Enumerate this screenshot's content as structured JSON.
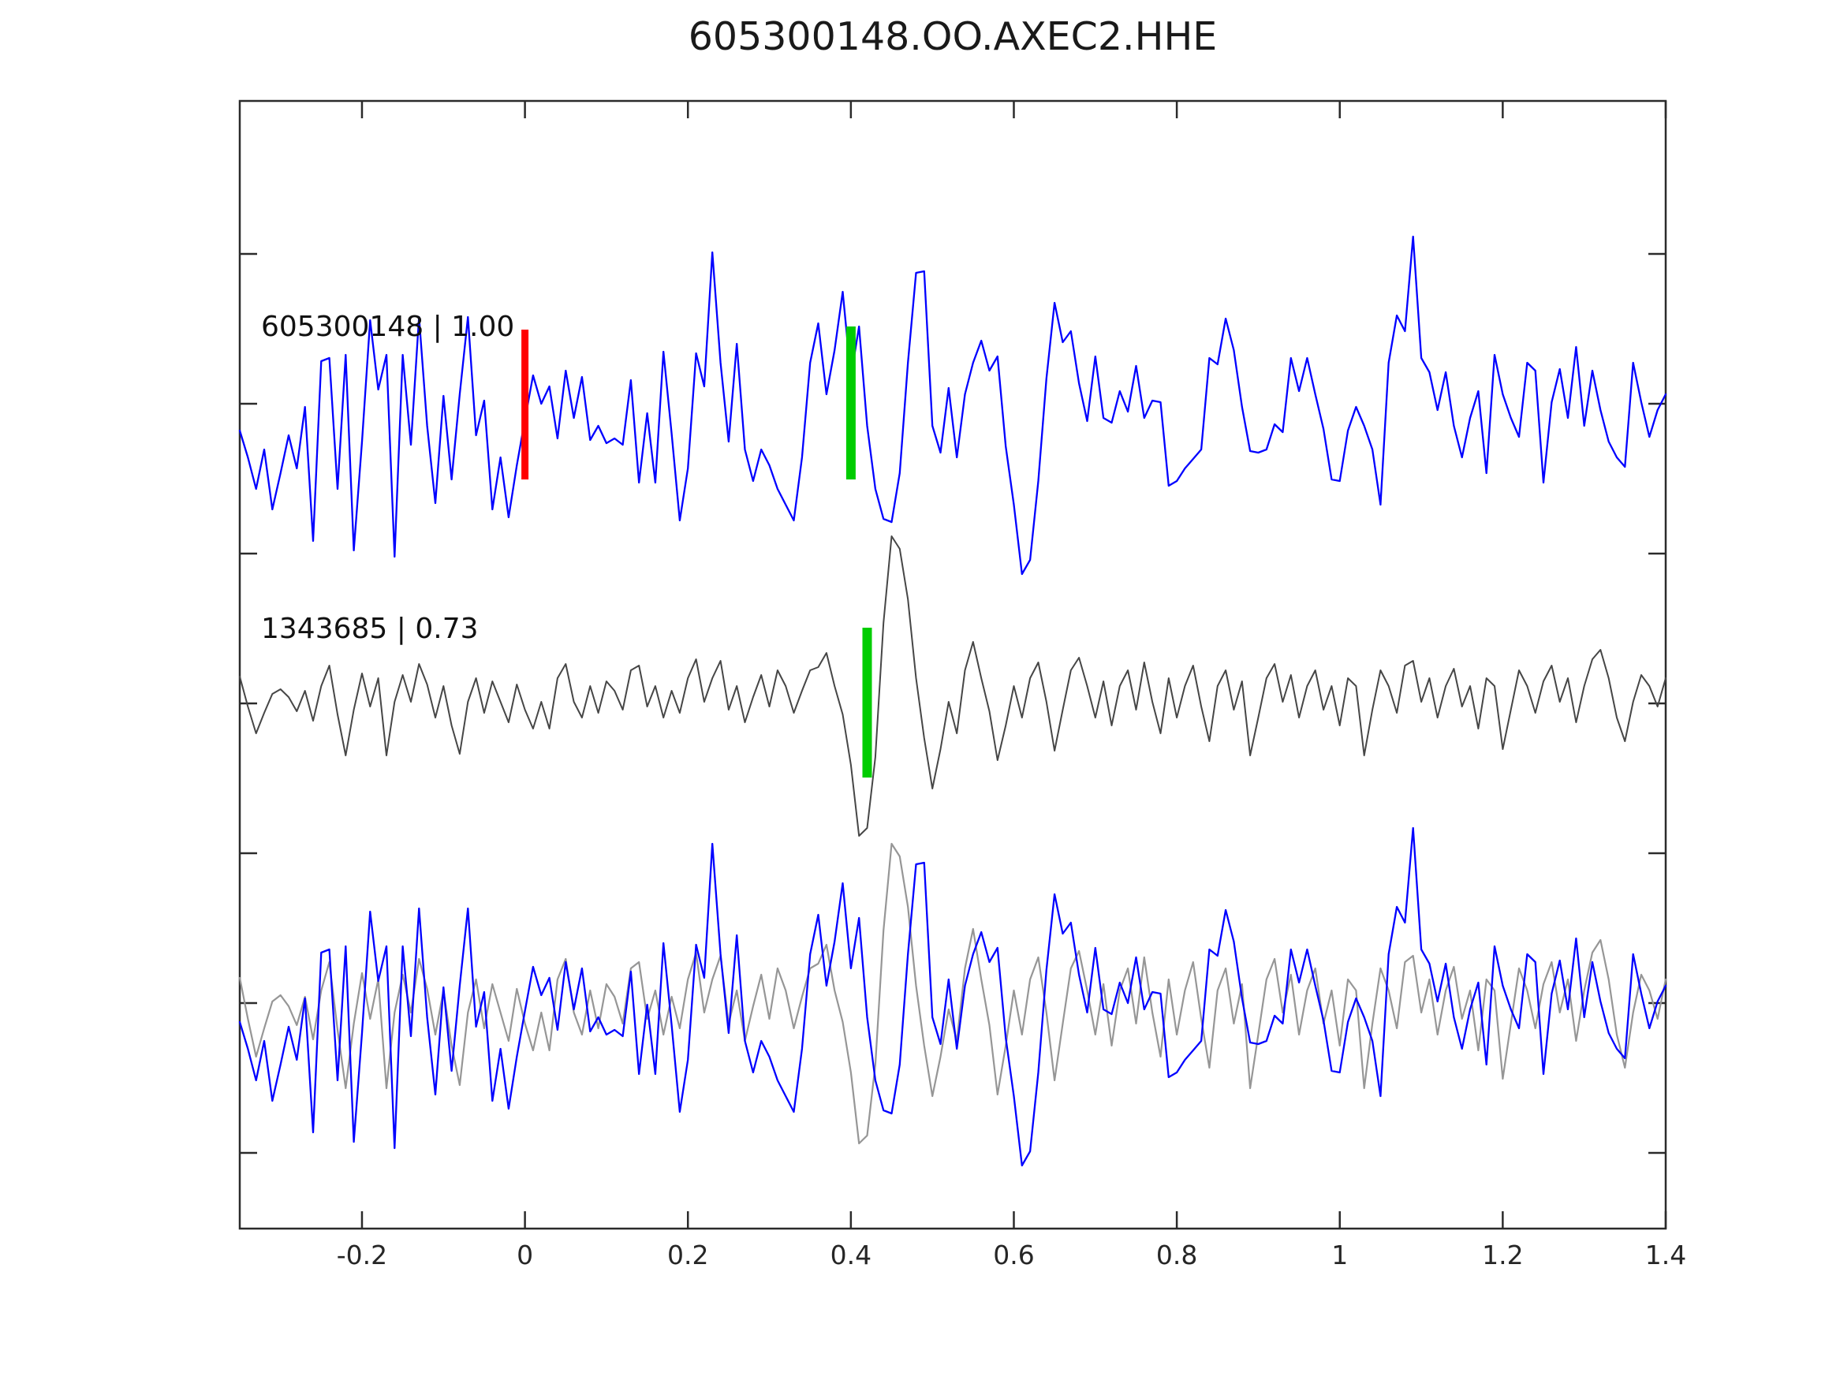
{
  "chart_data": {
    "type": "line",
    "title": "605300148.OO.AXEC2.HHE",
    "xlabel": "",
    "ylabel": "",
    "xlim": [
      -0.35,
      1.4
    ],
    "x_start": -0.35,
    "x_step": 0.01,
    "grid": false,
    "legend": "none",
    "x_ticks": [
      -0.2,
      0,
      0.2,
      0.4,
      0.6,
      0.8,
      1,
      1.2,
      1.4
    ],
    "x_tick_labels": [
      "-0.2",
      "0",
      "0.2",
      "0.4",
      "0.6",
      "0.8",
      "1",
      "1.2",
      "1.4"
    ],
    "annotations": [
      {
        "row": 0,
        "label": "605300148 | 1.00"
      },
      {
        "row": 1,
        "label": "1343685 | 0.73"
      }
    ],
    "markers": [
      {
        "row": 0,
        "x": 0.0,
        "color": "#ff0000",
        "width": 9,
        "span_up": 0.51,
        "span_down": 0.44,
        "name": "origin-time-marker"
      },
      {
        "row": 0,
        "x": 0.4,
        "color": "#00cc00",
        "width": 12,
        "span_up": 0.53,
        "span_down": 0.44,
        "name": "detection-pick-marker"
      },
      {
        "row": 1,
        "x": 0.42,
        "color": "#00cc00",
        "width": 12,
        "span_up": 0.42,
        "span_down": 0.53,
        "name": "template-pick-marker"
      }
    ],
    "rows": [
      {
        "name": "detection-row",
        "plots": [
          {
            "series": "detection",
            "color": "#0000ff",
            "width": 2.3
          }
        ]
      },
      {
        "name": "template-row",
        "plots": [
          {
            "series": "template",
            "color": "#464646",
            "width": 2.0
          }
        ]
      },
      {
        "name": "overlay-row",
        "plots": [
          {
            "series": "template_overlay",
            "color": "#969696",
            "width": 2.2
          },
          {
            "series": "detection",
            "color": "#0000ff",
            "width": 2.3
          }
        ]
      }
    ],
    "series": [
      {
        "id": "detection",
        "values": [
          -0.13,
          -0.3,
          -0.5,
          -0.25,
          -0.63,
          -0.4,
          -0.16,
          -0.37,
          0.02,
          -0.83,
          0.31,
          0.33,
          -0.5,
          0.35,
          -0.89,
          -0.2,
          0.57,
          0.13,
          0.35,
          -0.93,
          0.35,
          -0.22,
          0.59,
          -0.1,
          -0.59,
          0.09,
          -0.44,
          0.1,
          0.59,
          -0.16,
          0.06,
          -0.63,
          -0.3,
          -0.68,
          -0.35,
          -0.06,
          0.22,
          0.04,
          0.15,
          -0.18,
          0.25,
          -0.05,
          0.21,
          -0.19,
          -0.1,
          -0.21,
          -0.18,
          -0.22,
          0.19,
          -0.46,
          -0.02,
          -0.46,
          0.37,
          -0.15,
          -0.7,
          -0.37,
          0.36,
          0.15,
          1.0,
          0.3,
          -0.2,
          0.42,
          -0.25,
          -0.45,
          -0.25,
          -0.35,
          -0.5,
          -0.6,
          -0.7,
          -0.3,
          0.3,
          0.55,
          0.1,
          0.38,
          0.75,
          0.21,
          0.53,
          -0.1,
          -0.5,
          -0.69,
          -0.71,
          -0.4,
          0.3,
          0.87,
          0.88,
          -0.1,
          -0.27,
          0.14,
          -0.3,
          0.1,
          0.3,
          0.44,
          0.25,
          0.34,
          -0.23,
          -0.6,
          -1.04,
          -0.95,
          -0.45,
          0.2,
          0.68,
          0.43,
          0.5,
          0.17,
          -0.07,
          0.34,
          -0.05,
          -0.08,
          0.12,
          -0.01,
          0.28,
          -0.05,
          0.06,
          0.05,
          -0.48,
          -0.45,
          -0.37,
          -0.31,
          -0.25,
          0.33,
          0.29,
          0.58,
          0.38,
          0.02,
          -0.26,
          -0.27,
          -0.25,
          -0.09,
          -0.14,
          0.33,
          0.12,
          0.33,
          0.1,
          -0.12,
          -0.44,
          -0.45,
          -0.13,
          0.02,
          -0.1,
          -0.25,
          -0.6,
          0.3,
          0.6,
          0.5,
          1.1,
          0.33,
          0.24,
          0.0,
          0.24,
          -0.1,
          -0.3,
          -0.05,
          0.12,
          -0.4,
          0.35,
          0.1,
          -0.05,
          -0.17,
          0.3,
          0.25,
          -0.46,
          0.05,
          0.26,
          -0.05,
          0.4,
          -0.1,
          0.25,
          0.0,
          -0.2,
          -0.3,
          -0.36,
          0.3,
          0.05,
          -0.17,
          0.0,
          0.1
        ]
      },
      {
        "id": "template",
        "values": [
          0.11,
          -0.08,
          -0.25,
          -0.12,
          0.0,
          0.03,
          -0.02,
          -0.11,
          0.02,
          -0.17,
          0.05,
          0.18,
          -0.13,
          -0.39,
          -0.1,
          0.13,
          -0.08,
          0.1,
          -0.39,
          -0.05,
          0.12,
          -0.05,
          0.19,
          0.06,
          -0.15,
          0.05,
          -0.2,
          -0.38,
          -0.05,
          0.1,
          -0.12,
          0.08,
          -0.05,
          -0.18,
          0.06,
          -0.1,
          -0.22,
          -0.05,
          -0.22,
          0.1,
          0.19,
          -0.05,
          -0.15,
          0.05,
          -0.12,
          0.08,
          0.02,
          -0.1,
          0.15,
          0.18,
          -0.08,
          0.05,
          -0.15,
          0.02,
          -0.12,
          0.1,
          0.22,
          -0.05,
          0.1,
          0.21,
          -0.1,
          0.05,
          -0.18,
          -0.02,
          0.12,
          -0.08,
          0.15,
          0.05,
          -0.12,
          0.02,
          0.15,
          0.17,
          0.26,
          0.05,
          -0.13,
          -0.45,
          -0.9,
          -0.85,
          -0.4,
          0.45,
          1.0,
          0.92,
          0.6,
          0.1,
          -0.28,
          -0.6,
          -0.35,
          -0.05,
          -0.25,
          0.15,
          0.33,
          0.1,
          -0.11,
          -0.42,
          -0.2,
          0.05,
          -0.15,
          0.1,
          0.2,
          -0.05,
          -0.36,
          -0.1,
          0.15,
          0.23,
          0.05,
          -0.15,
          0.08,
          -0.2,
          0.05,
          0.15,
          -0.1,
          0.2,
          -0.05,
          -0.25,
          0.1,
          -0.15,
          0.05,
          0.18,
          -0.08,
          -0.3,
          0.05,
          0.15,
          -0.1,
          0.08,
          -0.39,
          -0.15,
          0.1,
          0.19,
          -0.05,
          0.12,
          -0.15,
          0.05,
          0.15,
          -0.1,
          0.05,
          -0.2,
          0.1,
          0.05,
          -0.39,
          -0.1,
          0.15,
          0.05,
          -0.12,
          0.18,
          0.21,
          -0.05,
          0.1,
          -0.15,
          0.05,
          0.16,
          -0.08,
          0.05,
          -0.22,
          0.1,
          0.05,
          -0.35,
          -0.1,
          0.15,
          0.05,
          -0.12,
          0.08,
          0.18,
          -0.05,
          0.1,
          -0.18,
          0.05,
          0.22,
          0.28,
          0.1,
          -0.15,
          -0.3,
          -0.05,
          0.12,
          0.05,
          -0.08,
          0.1
        ]
      },
      {
        "id": "template_overlay",
        "values": [
          0.15,
          -0.11,
          -0.35,
          -0.17,
          0.0,
          0.04,
          -0.03,
          -0.15,
          0.03,
          -0.24,
          0.07,
          0.25,
          -0.18,
          -0.55,
          -0.14,
          0.18,
          -0.11,
          0.14,
          -0.55,
          -0.07,
          0.17,
          -0.07,
          0.27,
          0.08,
          -0.21,
          0.07,
          -0.28,
          -0.53,
          -0.07,
          0.14,
          -0.17,
          0.11,
          -0.07,
          -0.25,
          0.08,
          -0.14,
          -0.31,
          -0.07,
          -0.31,
          0.14,
          0.27,
          -0.07,
          -0.21,
          0.07,
          -0.17,
          0.11,
          0.03,
          -0.14,
          0.21,
          0.25,
          -0.11,
          0.07,
          -0.21,
          0.03,
          -0.17,
          0.14,
          0.31,
          -0.07,
          0.14,
          0.29,
          -0.14,
          0.07,
          -0.25,
          -0.03,
          0.17,
          -0.11,
          0.21,
          0.07,
          -0.17,
          0.03,
          0.21,
          0.24,
          0.36,
          0.07,
          -0.13,
          -0.45,
          -0.9,
          -0.85,
          -0.4,
          0.45,
          1.0,
          0.92,
          0.6,
          0.1,
          -0.28,
          -0.6,
          -0.35,
          -0.05,
          -0.25,
          0.21,
          0.46,
          0.14,
          -0.15,
          -0.59,
          -0.28,
          0.07,
          -0.21,
          0.14,
          0.28,
          -0.07,
          -0.5,
          -0.14,
          0.21,
          0.32,
          0.07,
          -0.21,
          0.11,
          -0.28,
          0.07,
          0.21,
          -0.14,
          0.28,
          -0.07,
          -0.35,
          0.14,
          -0.21,
          0.07,
          0.25,
          -0.11,
          -0.42,
          0.07,
          0.21,
          -0.14,
          0.11,
          -0.55,
          -0.21,
          0.14,
          0.27,
          -0.07,
          0.17,
          -0.21,
          0.07,
          0.21,
          -0.14,
          0.07,
          -0.28,
          0.14,
          0.07,
          -0.55,
          -0.14,
          0.21,
          0.07,
          -0.17,
          0.25,
          0.29,
          -0.07,
          0.14,
          -0.21,
          0.07,
          0.22,
          -0.11,
          0.07,
          -0.31,
          0.14,
          0.07,
          -0.49,
          -0.14,
          0.21,
          0.07,
          -0.17,
          0.11,
          0.25,
          -0.07,
          0.14,
          -0.25,
          0.07,
          0.31,
          0.39,
          0.14,
          -0.21,
          -0.42,
          -0.07,
          0.17,
          0.07,
          -0.11,
          0.14
        ]
      }
    ],
    "styles": {
      "spine_color": "#2b2b2b",
      "tick_color": "#2b2b2b",
      "detection_color": "#0000ff",
      "template_color": "#464646",
      "overlay_template_color": "#969696",
      "marker_red": "#ff0000",
      "marker_green": "#00cc00"
    }
  }
}
